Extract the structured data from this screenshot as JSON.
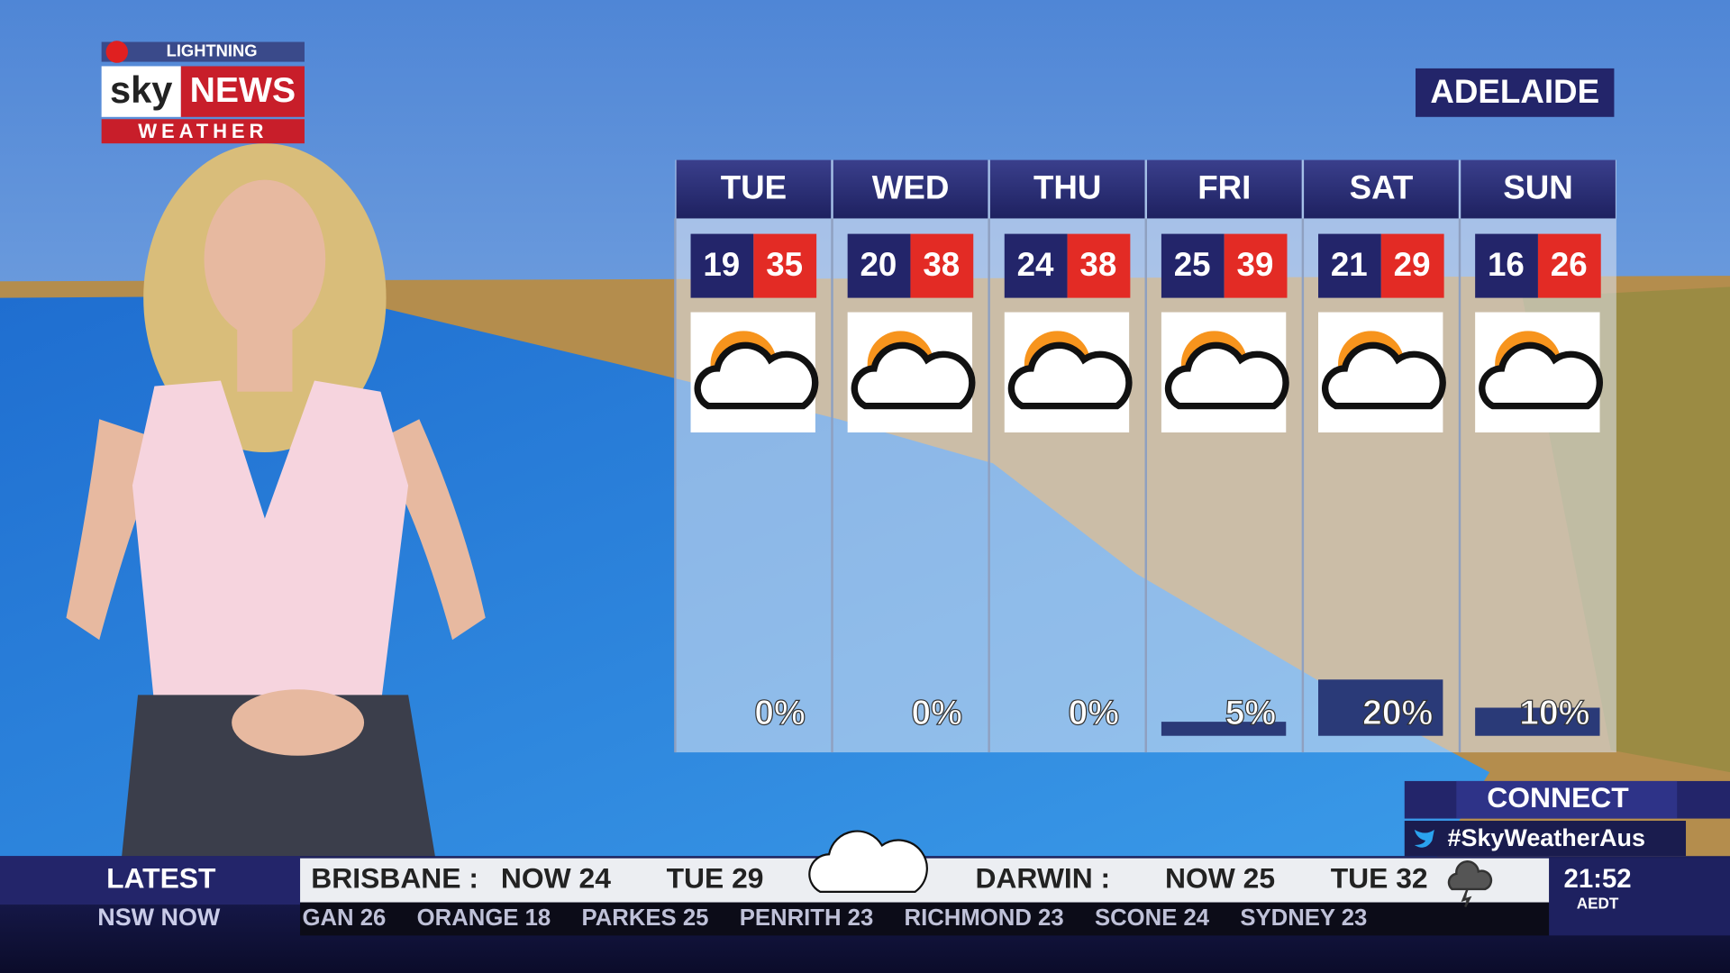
{
  "logo": {
    "badge": "LIGHTNING",
    "brand_sky": "sky",
    "brand_news": "NEWS",
    "sub": "WEATHER"
  },
  "location": "ADELAIDE",
  "forecast": [
    {
      "day": "TUE",
      "min": 19,
      "max": 35,
      "rain": 0,
      "rain_label": "0%"
    },
    {
      "day": "WED",
      "min": 20,
      "max": 38,
      "rain": 0,
      "rain_label": "0%"
    },
    {
      "day": "THU",
      "min": 24,
      "max": 38,
      "rain": 0,
      "rain_label": "0%"
    },
    {
      "day": "FRI",
      "min": 25,
      "max": 39,
      "rain": 5,
      "rain_label": "5%"
    },
    {
      "day": "SAT",
      "min": 21,
      "max": 29,
      "rain": 20,
      "rain_label": "20%"
    },
    {
      "day": "SUN",
      "min": 16,
      "max": 26,
      "rain": 10,
      "rain_label": "10%"
    }
  ],
  "connect": {
    "title": "CONNECT",
    "hashtag": "#SkyWeatherAus"
  },
  "ticker": {
    "section": "LATEST",
    "subsection": "NSW NOW",
    "headlines": [
      {
        "city": "BRISBANE :",
        "now": "NOW 24",
        "next": "TUE 29"
      },
      {
        "city": "DARWIN :",
        "now": "NOW 25",
        "next": "TUE 32"
      }
    ],
    "scroll": [
      "GAN 26",
      "ORANGE 18",
      "PARKES 25",
      "PENRITH 23",
      "RICHMOND 23",
      "SCONE 24",
      "SYDNEY 23"
    ],
    "time": "21:52",
    "zone": "AEDT"
  }
}
